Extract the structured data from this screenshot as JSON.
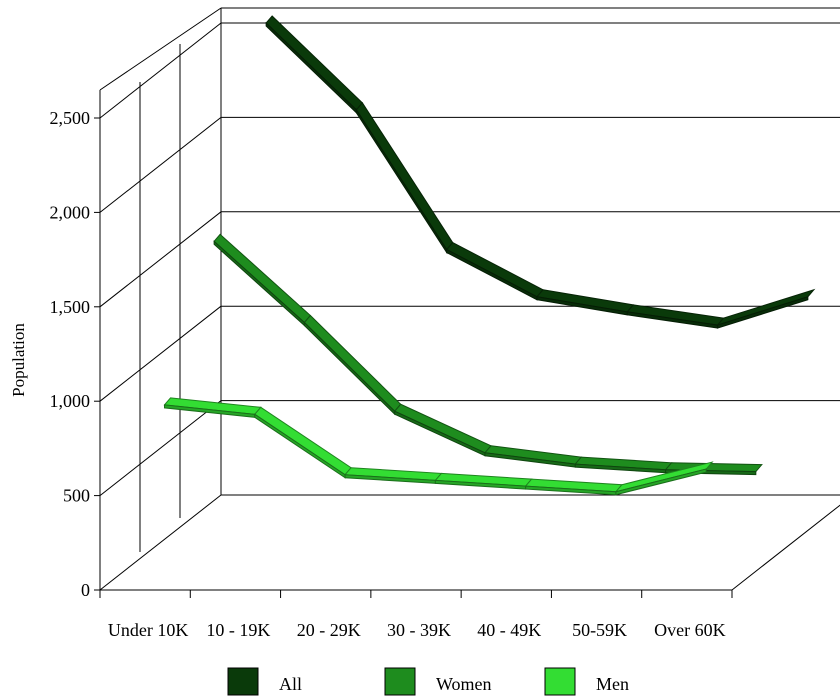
{
  "chart_data": {
    "type": "line",
    "title": "",
    "xlabel": "",
    "ylabel": "Population",
    "categories": [
      "Under 10K",
      "10 - 19K",
      "20 - 29K",
      "30 - 39K",
      "40 - 49K",
      "50-59K",
      "Over 60K"
    ],
    "ylim": [
      0,
      2500
    ],
    "yticks": [
      "0",
      "500",
      "1,000",
      "1,500",
      "2,000",
      "2,500"
    ],
    "grid": true,
    "three_d": true,
    "legend_position": "bottom",
    "series": [
      {
        "name": "All",
        "color": "#0a3a0a",
        "values": [
          2500,
          2040,
          1300,
          1050,
          970,
          900,
          1050
        ]
      },
      {
        "name": "Women",
        "color": "#1e8c1e",
        "values": [
          1560,
          1130,
          660,
          440,
          380,
          350,
          340
        ]
      },
      {
        "name": "Men",
        "color": "#33dd33",
        "values": [
          900,
          850,
          530,
          500,
          470,
          440,
          560
        ]
      }
    ]
  }
}
